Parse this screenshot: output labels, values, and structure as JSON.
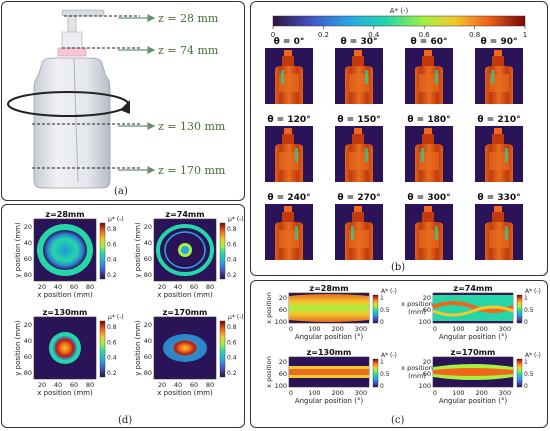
{
  "colors": {
    "colormap": [
      "#3b1b7a",
      "#3d4fc0",
      "#1f9ed8",
      "#35c88a",
      "#b8d43a",
      "#f9c33a",
      "#e45b2a",
      "#b11e10",
      "#7a0403"
    ],
    "background": "#2a1457"
  },
  "panel_a": {
    "label": "(a)",
    "z_labels": [
      "z = 28 mm",
      "z = 74 mm",
      "z = 130 mm",
      "z = 170 mm"
    ]
  },
  "panel_b": {
    "label": "(b)",
    "colorbar_title": "A* (-)",
    "colorbar_ticks": [
      "0",
      "0.2",
      "0.4",
      "0.6",
      "0.8",
      "1"
    ],
    "angles": [
      "θ = 0°",
      "θ = 30°",
      "θ = 60°",
      "θ = 90°",
      "θ = 120°",
      "θ = 150°",
      "θ = 180°",
      "θ = 210°",
      "θ = 240°",
      "θ = 270°",
      "θ = 300°",
      "θ = 330°"
    ]
  },
  "panel_d": {
    "label": "(d)",
    "titles": [
      "z=28mm",
      "z=74mm",
      "z=130mm",
      "z=170mm"
    ],
    "ylabel": "y position (mm)",
    "xlabel": "x position (mm)",
    "yticks": [
      "20",
      "40",
      "60",
      "80"
    ],
    "xticks": [
      "20",
      "40",
      "60",
      "80"
    ],
    "cb_title": "μ* (-)",
    "cb_ticks": [
      "0.8",
      "0.6",
      "0.4",
      "0.2"
    ]
  },
  "panel_c": {
    "label": "(c)",
    "titles": [
      "z=28mm",
      "z=74mm",
      "z=130mm",
      "z=170mm"
    ],
    "ylabel_top": "x position",
    "ylabel_unit": "(mm)",
    "ylabel_full": "x position",
    "xlabel": "Angular position (°)",
    "yticks": [
      "20",
      "60",
      "100"
    ],
    "xticks": [
      "0",
      "100",
      "200",
      "300"
    ],
    "cb_title": "A* (-)",
    "cb_ticks": [
      "1",
      "0.5",
      "0"
    ]
  }
}
